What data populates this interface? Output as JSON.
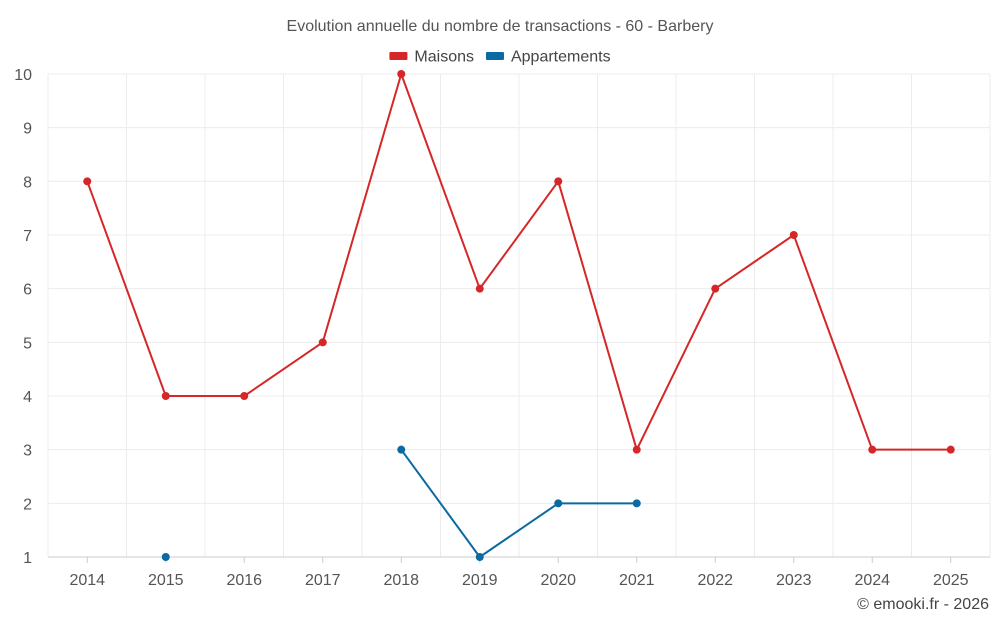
{
  "chart_data": {
    "type": "line",
    "title": "Evolution annuelle du nombre de transactions - 60 - Barbery",
    "xlabel": "",
    "ylabel": "",
    "categories": [
      "2014",
      "2015",
      "2016",
      "2017",
      "2018",
      "2019",
      "2020",
      "2021",
      "2022",
      "2023",
      "2024",
      "2025"
    ],
    "yticks": [
      "1",
      "2",
      "3",
      "4",
      "5",
      "6",
      "7",
      "8",
      "9",
      "10"
    ],
    "ylim": [
      1,
      10
    ],
    "grid": true,
    "legend_position": "top-center",
    "series": [
      {
        "name": "Maisons",
        "color": "#d62728",
        "values": [
          8,
          4,
          4,
          5,
          10,
          6,
          8,
          3,
          6,
          7,
          3,
          3
        ]
      },
      {
        "name": "Appartements",
        "color": "#0a6aa1",
        "values": [
          null,
          1,
          null,
          null,
          3,
          1,
          2,
          2,
          null,
          null,
          null,
          null
        ]
      }
    ]
  },
  "credit": "© emooki.fr - 2026"
}
